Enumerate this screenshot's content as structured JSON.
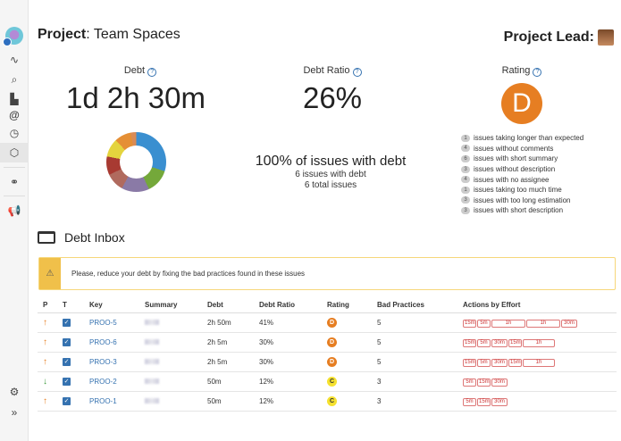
{
  "sidebar": {
    "icons": [
      "app-logo",
      "activity-icon",
      "search-list-icon",
      "bar-chart-icon",
      "at-icon",
      "clock-icon",
      "settings-hex-icon",
      "link-icon",
      "megaphone-icon",
      "gear-icon",
      "expand-icon"
    ]
  },
  "header": {
    "title_prefix": "Project",
    "title": ": Team Spaces",
    "lead_label": "Project Lead:"
  },
  "metrics": {
    "debt_label": "Debt",
    "debt_value": "1d 2h 30m",
    "ratio_label": "Debt Ratio",
    "ratio_value": "26%",
    "rating_label": "Rating",
    "rating_value": "D",
    "rating_color": "#e67e22",
    "issues_pct": "100%",
    "issues_pct_text": "of issues with debt",
    "with_debt": "6 issues with debt",
    "total": "6 total issues"
  },
  "donut": {
    "segments": [
      {
        "color": "#3a8fd0",
        "value": 30
      },
      {
        "color": "#74a83a",
        "value": 13
      },
      {
        "color": "#8a7aa6",
        "value": 15
      },
      {
        "color": "#b06a5e",
        "value": 10
      },
      {
        "color": "#a83a32",
        "value": 10
      },
      {
        "color": "#e4d43e",
        "value": 10
      },
      {
        "color": "#e58f35",
        "value": 9
      },
      {
        "color": "#d98b56",
        "value": 3
      }
    ]
  },
  "practices": [
    {
      "count": "1",
      "text": "issues taking longer than expected"
    },
    {
      "count": "4",
      "text": "issues without comments"
    },
    {
      "count": "6",
      "text": "issues with short summary"
    },
    {
      "count": "3",
      "text": "issues without description"
    },
    {
      "count": "4",
      "text": "issues with no assignee"
    },
    {
      "count": "1",
      "text": "issues taking too much time"
    },
    {
      "count": "3",
      "text": "issues with too long estimation"
    },
    {
      "count": "3",
      "text": "issues with short description"
    }
  ],
  "inbox": {
    "title": "Debt Inbox",
    "alert": "Please, reduce your debt by fixing the bad practices found in these issues"
  },
  "table": {
    "headers": [
      "P",
      "T",
      "Key",
      "Summary",
      "Debt",
      "Debt Ratio",
      "Rating",
      "Bad Practices",
      "Actions by Effort"
    ],
    "rows": [
      {
        "priority": "up",
        "key": "PROO-5",
        "debt": "2h 50m",
        "ratio": "41%",
        "rating": "D",
        "bad": "5",
        "actions": [
          "15m",
          "5m",
          "1h",
          "1h",
          "30m"
        ]
      },
      {
        "priority": "up",
        "key": "PROO-6",
        "debt": "2h 5m",
        "ratio": "30%",
        "rating": "D",
        "bad": "5",
        "actions": [
          "15m",
          "5m",
          "30m",
          "15m",
          "1h"
        ]
      },
      {
        "priority": "up",
        "key": "PROO-3",
        "debt": "2h 5m",
        "ratio": "30%",
        "rating": "D",
        "bad": "5",
        "actions": [
          "15m",
          "5m",
          "30m",
          "15m",
          "1h"
        ]
      },
      {
        "priority": "down",
        "key": "PROO-2",
        "debt": "50m",
        "ratio": "12%",
        "rating": "C",
        "bad": "3",
        "actions": [
          "5m",
          "15m",
          "30m"
        ]
      },
      {
        "priority": "up",
        "key": "PROO-1",
        "debt": "50m",
        "ratio": "12%",
        "rating": "C",
        "bad": "3",
        "actions": [
          "5m",
          "15m",
          "30m"
        ]
      }
    ]
  },
  "rating_colors": {
    "D": "#e67e22",
    "C": "#f5e12f"
  }
}
